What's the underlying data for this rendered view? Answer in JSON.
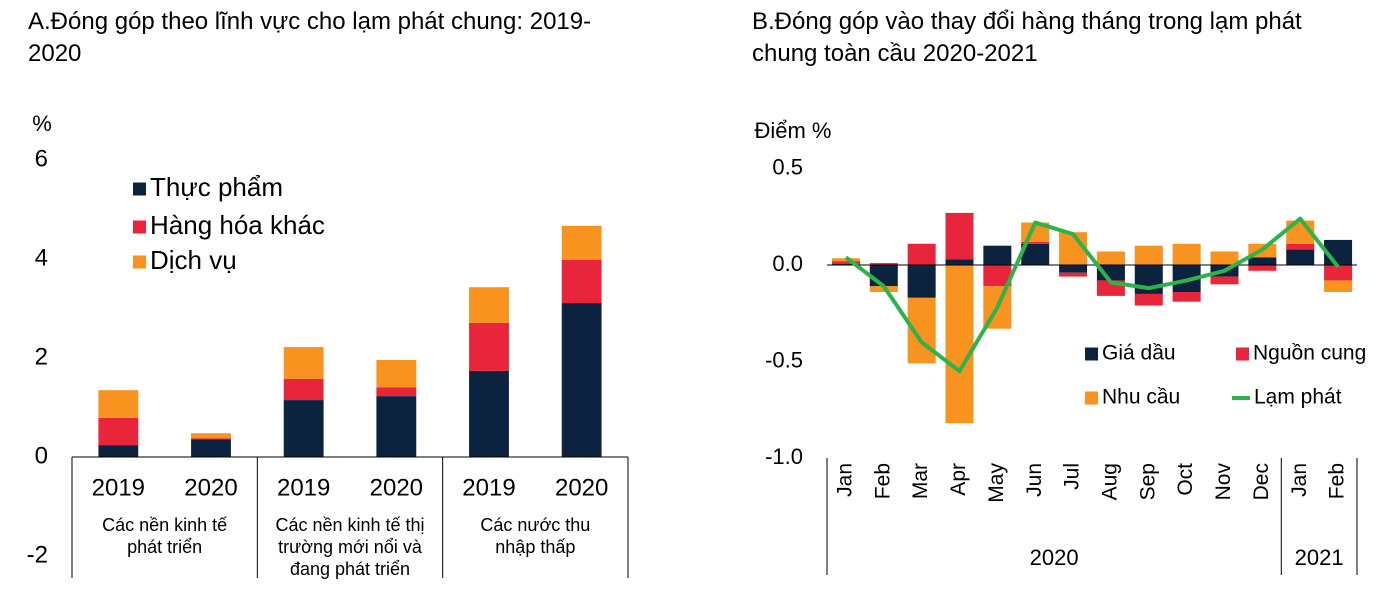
{
  "chart_data": [
    {
      "type": "bar",
      "stacked": true,
      "title": "A.Đóng góp theo lĩnh vực cho lạm phát chung: 2019-2020",
      "y_label": "%",
      "groups": [
        {
          "label": "Các nền kinh tế phát triển",
          "categories": [
            "2019",
            "2020"
          ]
        },
        {
          "label": "Các nền kinh tế thị trường mới nổi và đang phát triển",
          "categories": [
            "2019",
            "2020"
          ]
        },
        {
          "label": "Các nước thu nhập thấp",
          "categories": [
            "2019",
            "2020"
          ]
        }
      ],
      "series": [
        {
          "name": "Thực phẩm",
          "color": "#0c2340",
          "values": [
            0.24,
            0.36,
            1.15,
            1.23,
            1.74,
            3.11
          ]
        },
        {
          "name": "Hàng hóa khác",
          "color": "#e8253a",
          "values": [
            0.55,
            0.02,
            0.43,
            0.18,
            0.97,
            0.87
          ]
        },
        {
          "name": "Dịch vụ",
          "color": "#f7931e",
          "values": [
            0.56,
            0.1,
            0.64,
            0.55,
            0.72,
            0.69
          ]
        }
      ],
      "ylim": [
        -2,
        6
      ],
      "yticks": [
        -2,
        0,
        2,
        4,
        6
      ]
    },
    {
      "type": "combo",
      "stacked": true,
      "title": "B.Đóng góp vào thay đổi hàng tháng trong lạm phát chung toàn cầu 2020-2021",
      "y_label": "Điểm %",
      "groups": [
        {
          "label": "2020",
          "categories": [
            "Jan",
            "Feb",
            "Mar",
            "Apr",
            "May",
            "Jun",
            "Jul",
            "Aug",
            "Sep",
            "Oct",
            "Nov",
            "Dec"
          ]
        },
        {
          "label": "2021",
          "categories": [
            "Jan",
            "Feb"
          ]
        }
      ],
      "series": [
        {
          "name": "Giá dầu",
          "type": "bar",
          "color": "#0c2340",
          "values": [
            0.005,
            -0.11,
            -0.17,
            0.03,
            0.1,
            0.11,
            -0.04,
            -0.08,
            -0.15,
            -0.14,
            -0.06,
            0.04,
            0.08,
            0.13
          ]
        },
        {
          "name": "Nguồn cung",
          "type": "bar",
          "color": "#e8253a",
          "values": [
            0.015,
            0.01,
            0.11,
            0.24,
            -0.11,
            0.01,
            -0.02,
            -0.08,
            -0.06,
            -0.05,
            -0.04,
            -0.03,
            0.03,
            -0.08
          ]
        },
        {
          "name": "Nhu cầu",
          "type": "bar",
          "color": "#f7931e",
          "values": [
            0.015,
            -0.03,
            -0.34,
            -0.82,
            -0.22,
            0.1,
            0.17,
            0.07,
            0.1,
            0.11,
            0.07,
            0.07,
            0.12,
            -0.06
          ]
        },
        {
          "name": "Lạm phát",
          "type": "line",
          "color": "#2db34a",
          "values": [
            0.04,
            -0.11,
            -0.4,
            -0.55,
            -0.22,
            0.22,
            0.16,
            -0.09,
            -0.12,
            -0.08,
            -0.03,
            0.08,
            0.24,
            -0.01
          ]
        }
      ],
      "ylim": [
        -1,
        0.5
      ],
      "yticks": [
        {
          "value": -1,
          "label": "-1.0"
        },
        -0.5,
        {
          "value": 0,
          "label": "0.0"
        },
        0.5
      ]
    }
  ]
}
